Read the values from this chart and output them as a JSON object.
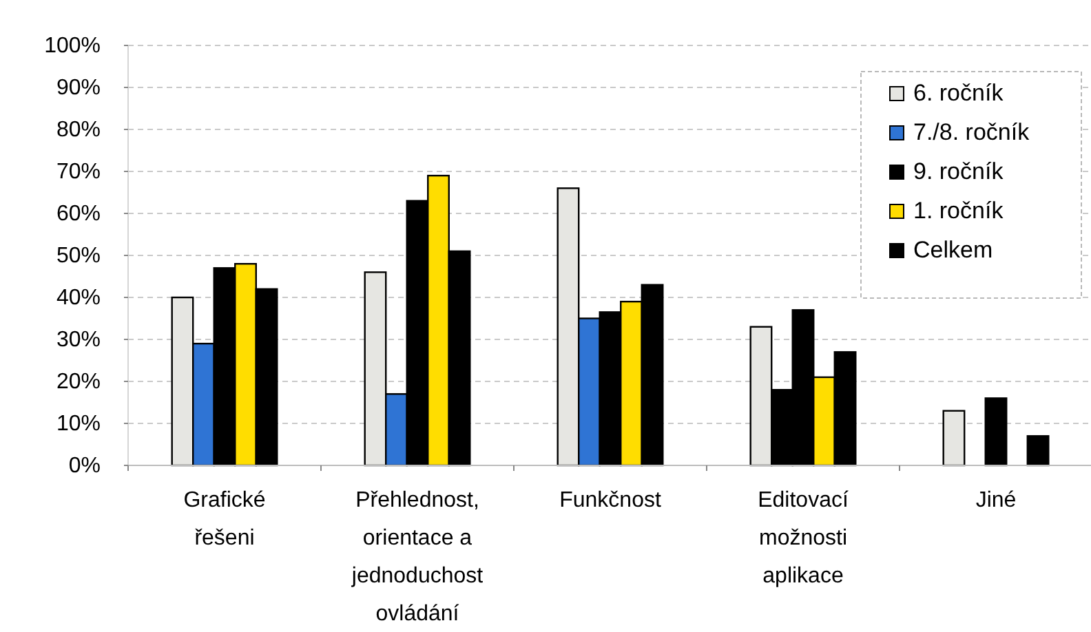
{
  "chart_data": {
    "type": "bar",
    "categories": [
      "Grafické řešeni",
      "Přehlednost, orientace a jednoduchost ovládání",
      "Funkčnost",
      "Editovací možnosti aplikace",
      "Jiné"
    ],
    "series": [
      {
        "name": "6. ročník",
        "color": "#e6e6e2",
        "values": [
          40,
          46,
          66,
          33,
          13
        ]
      },
      {
        "name": "7./8. ročník",
        "color": "#2f74d4",
        "colors": [
          "#2f74d4",
          "#2f74d4",
          "#2f74d4",
          "#000000",
          null
        ],
        "values": [
          29,
          17,
          35,
          18,
          null
        ]
      },
      {
        "name": "9. ročník",
        "color": "#000000",
        "values": [
          47,
          63,
          36.5,
          37,
          16
        ]
      },
      {
        "name": "1. ročník",
        "color": "#ffdd00",
        "values": [
          48,
          69,
          39,
          21,
          null
        ]
      },
      {
        "name": "Celkem",
        "color": "#000000",
        "values": [
          42,
          51,
          43,
          27,
          7
        ]
      }
    ],
    "ylim": [
      0,
      100
    ],
    "yticks": [
      {
        "value": 0,
        "label": "0%"
      },
      {
        "value": 10,
        "label": "10%"
      },
      {
        "value": 20,
        "label": "20%"
      },
      {
        "value": 30,
        "label": "30%"
      },
      {
        "value": 40,
        "label": "40%"
      },
      {
        "value": 50,
        "label": "50%"
      },
      {
        "value": 60,
        "label": "60%"
      },
      {
        "value": 70,
        "label": "70%"
      },
      {
        "value": 80,
        "label": "80%"
      },
      {
        "value": 90,
        "label": "90%"
      },
      {
        "value": 100,
        "label": "100%"
      }
    ],
    "grid": "y",
    "legend": "top right"
  }
}
